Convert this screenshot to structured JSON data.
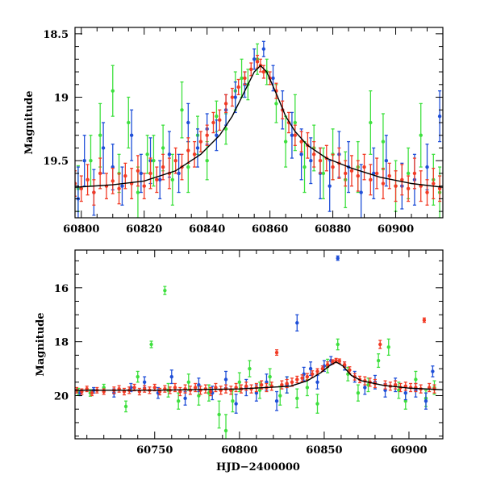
{
  "colors": {
    "green": "#3ee03e",
    "blue": "#1f4fd8",
    "red": "#f23a24",
    "model": "#000000",
    "frame": "#000000",
    "background": "#ffffff"
  },
  "chart_data": [
    {
      "type": "scatter",
      "panel": "top",
      "title": "",
      "xlabel": "",
      "ylabel": "Magnitude",
      "xlim": [
        60798,
        60915
      ],
      "ylim": [
        19.95,
        18.45
      ],
      "y_inverted": true,
      "grid": false,
      "error_bars": true,
      "xticks": [
        60800,
        60820,
        60840,
        60860,
        60880,
        60900
      ],
      "yticks": [
        18.5,
        19,
        19.5
      ],
      "ytick_labels": [
        "18.5",
        "19",
        "19.5"
      ],
      "model_curve": {
        "x": [
          60798,
          60810,
          60820,
          60830,
          60838,
          60844,
          60848,
          60852,
          60855,
          60857,
          60859,
          60862,
          60865,
          60868,
          60872,
          60878,
          60886,
          60895,
          60905,
          60915
        ],
        "y": [
          19.71,
          19.69,
          19.66,
          19.58,
          19.45,
          19.3,
          19.15,
          18.95,
          18.8,
          18.75,
          18.8,
          18.97,
          19.15,
          19.27,
          19.38,
          19.48,
          19.56,
          19.63,
          19.68,
          19.71
        ]
      },
      "series": [
        {
          "color": "green",
          "x": [
            60799,
            60803,
            60806,
            60810,
            60812,
            60815,
            60818,
            60821,
            60823,
            60826,
            60829,
            60832,
            60834,
            60837,
            60840,
            60843,
            60846,
            60849,
            60851,
            60853,
            60856,
            60859,
            60862,
            60865,
            60868,
            60871,
            60874,
            60877,
            60880,
            60884,
            60888,
            60892,
            60896,
            60900,
            60904,
            60908,
            60912,
            60914
          ],
          "y": [
            19.72,
            19.5,
            19.3,
            18.95,
            19.6,
            19.2,
            19.75,
            19.45,
            19.5,
            19.4,
            19.65,
            19.1,
            19.55,
            19.3,
            19.5,
            19.15,
            19.25,
            18.95,
            18.85,
            18.9,
            18.7,
            18.8,
            19.05,
            19.35,
            19.2,
            19.55,
            19.4,
            19.6,
            19.45,
            19.65,
            19.55,
            19.2,
            19.35,
            19.7,
            19.6,
            19.3,
            19.65,
            19.75
          ],
          "err": [
            0.18,
            0.2,
            0.25,
            0.2,
            0.15,
            0.2,
            0.2,
            0.15,
            0.2,
            0.18,
            0.2,
            0.22,
            0.2,
            0.15,
            0.15,
            0.12,
            0.12,
            0.15,
            0.15,
            0.12,
            0.12,
            0.1,
            0.15,
            0.2,
            0.22,
            0.2,
            0.18,
            0.2,
            0.2,
            0.22,
            0.2,
            0.25,
            0.22,
            0.2,
            0.2,
            0.25,
            0.2,
            0.2
          ]
        },
        {
          "color": "blue",
          "x": [
            60799,
            60801,
            60804,
            60807,
            60810,
            60813,
            60816,
            60819,
            60822,
            60825,
            60828,
            60831,
            60834,
            60837,
            60840,
            60843,
            60846,
            60849,
            60852,
            60855,
            60858,
            60861,
            60864,
            60867,
            60870,
            60873,
            60876,
            60879,
            60882,
            60885,
            60889,
            60893,
            60897,
            60902,
            60906,
            60910,
            60914
          ],
          "y": [
            19.8,
            19.5,
            19.75,
            19.4,
            19.55,
            19.7,
            19.3,
            19.6,
            19.5,
            19.65,
            19.45,
            19.6,
            19.2,
            19.4,
            19.25,
            19.3,
            19.1,
            19.0,
            18.9,
            18.7,
            18.62,
            18.85,
            19.1,
            19.3,
            19.45,
            19.5,
            19.6,
            19.7,
            19.45,
            19.55,
            19.75,
            19.6,
            19.5,
            19.7,
            19.65,
            19.55,
            19.15
          ],
          "err": [
            0.25,
            0.2,
            0.18,
            0.2,
            0.18,
            0.15,
            0.2,
            0.15,
            0.18,
            0.15,
            0.18,
            0.15,
            0.15,
            0.15,
            0.12,
            0.12,
            0.12,
            0.12,
            0.1,
            0.08,
            0.06,
            0.1,
            0.15,
            0.18,
            0.2,
            0.18,
            0.2,
            0.2,
            0.18,
            0.2,
            0.22,
            0.2,
            0.2,
            0.18,
            0.2,
            0.18,
            0.2
          ]
        },
        {
          "color": "red",
          "x": [
            60798,
            60800,
            60802,
            60804,
            60806,
            60808,
            60810,
            60812,
            60814,
            60816,
            60818,
            60820,
            60822,
            60824,
            60826,
            60828,
            60830,
            60832,
            60834,
            60836,
            60838,
            60840,
            60842,
            60844,
            60846,
            60848,
            60850,
            60852,
            60854,
            60856,
            60857,
            60858,
            60860,
            60862,
            60864,
            60866,
            60868,
            60870,
            60872,
            60874,
            60876,
            60878,
            60880,
            60882,
            60884,
            60886,
            60888,
            60890,
            60892,
            60894,
            60896,
            60898,
            60900,
            60902,
            60904,
            60906,
            60908,
            60910,
            60912,
            60914
          ],
          "y": [
            19.68,
            19.72,
            19.65,
            19.75,
            19.6,
            19.7,
            19.66,
            19.72,
            19.62,
            19.68,
            19.58,
            19.7,
            19.6,
            19.65,
            19.55,
            19.6,
            19.5,
            19.55,
            19.42,
            19.45,
            19.35,
            19.3,
            19.2,
            19.18,
            19.05,
            19.0,
            18.92,
            18.85,
            18.78,
            18.72,
            18.75,
            18.8,
            18.85,
            18.95,
            19.1,
            19.2,
            19.3,
            19.35,
            19.38,
            19.45,
            19.5,
            19.48,
            19.55,
            19.52,
            19.6,
            19.58,
            19.62,
            19.55,
            19.65,
            19.6,
            19.68,
            19.62,
            19.7,
            19.65,
            19.72,
            19.6,
            19.7,
            19.75,
            19.68,
            19.72
          ],
          "err": [
            0.1,
            0.1,
            0.12,
            0.1,
            0.12,
            0.1,
            0.1,
            0.12,
            0.1,
            0.12,
            0.12,
            0.1,
            0.12,
            0.1,
            0.1,
            0.12,
            0.1,
            0.1,
            0.1,
            0.1,
            0.08,
            0.08,
            0.08,
            0.08,
            0.07,
            0.07,
            0.06,
            0.05,
            0.05,
            0.05,
            0.05,
            0.05,
            0.05,
            0.06,
            0.07,
            0.08,
            0.08,
            0.08,
            0.1,
            0.1,
            0.1,
            0.1,
            0.1,
            0.12,
            0.1,
            0.12,
            0.12,
            0.1,
            0.12,
            0.12,
            0.12,
            0.1,
            0.12,
            0.12,
            0.1,
            0.12,
            0.12,
            0.1,
            0.12,
            0.1
          ]
        }
      ]
    },
    {
      "type": "scatter",
      "panel": "bottom",
      "title": "",
      "xlabel": "HJD−2400000",
      "ylabel": "Magnitude",
      "xlim": [
        60703,
        60920
      ],
      "ylim": [
        21.6,
        14.6
      ],
      "y_inverted": true,
      "grid": false,
      "error_bars": true,
      "xticks": [
        60750,
        60800,
        60850,
        60900
      ],
      "yticks": [
        16,
        18,
        20
      ],
      "ytick_labels": [
        "16",
        "18",
        "20"
      ],
      "model_curve": {
        "x": [
          60703,
          60750,
          60800,
          60830,
          60840,
          60848,
          60853,
          60857,
          60861,
          60866,
          60872,
          60885,
          60900,
          60920
        ],
        "y": [
          19.8,
          19.8,
          19.75,
          19.65,
          19.45,
          19.15,
          18.9,
          18.75,
          18.9,
          19.25,
          19.45,
          19.62,
          19.72,
          19.78
        ]
      },
      "series": [
        {
          "color": "green",
          "x": [
            60705,
            60712,
            60720,
            60733,
            60740,
            60748,
            60756,
            60758,
            60764,
            60770,
            60776,
            60782,
            60788,
            60792,
            60796,
            60800,
            60806,
            60812,
            60818,
            60824,
            60828,
            60834,
            60840,
            60846,
            60852,
            60858,
            60864,
            60870,
            60876,
            60882,
            60888,
            60894,
            60898,
            60904,
            60910,
            60915
          ],
          "y": [
            19.85,
            19.9,
            19.7,
            20.4,
            19.3,
            18.1,
            16.1,
            19.8,
            20.2,
            19.5,
            20.0,
            19.9,
            20.7,
            21.3,
            20.2,
            19.5,
            19.0,
            19.8,
            19.3,
            20.0,
            19.6,
            20.1,
            19.7,
            20.3,
            18.9,
            18.1,
            19.2,
            19.9,
            19.6,
            18.7,
            18.2,
            19.8,
            20.2,
            19.4,
            20.1,
            19.7
          ],
          "err": [
            0.12,
            0.12,
            0.12,
            0.2,
            0.2,
            0.12,
            0.15,
            0.25,
            0.3,
            0.3,
            0.35,
            0.3,
            0.5,
            0.6,
            0.4,
            0.35,
            0.3,
            0.3,
            0.3,
            0.35,
            0.3,
            0.35,
            0.3,
            0.35,
            0.25,
            0.2,
            0.25,
            0.3,
            0.25,
            0.25,
            0.3,
            0.3,
            0.3,
            0.3,
            0.3,
            0.25
          ]
        },
        {
          "color": "blue",
          "x": [
            60706,
            60714,
            60726,
            60736,
            60744,
            60752,
            60760,
            60768,
            60776,
            60784,
            60792,
            60798,
            60804,
            60810,
            60816,
            60822,
            60828,
            60834,
            60838,
            60842,
            60846,
            60850,
            60854,
            60858,
            60862,
            60868,
            60874,
            60880,
            60886,
            60892,
            60898,
            60904,
            60910,
            60914
          ],
          "y": [
            19.9,
            19.8,
            19.9,
            19.7,
            19.5,
            19.9,
            19.3,
            20.1,
            19.6,
            19.9,
            19.4,
            20.3,
            19.7,
            19.9,
            19.5,
            20.2,
            19.6,
            17.3,
            19.2,
            19.0,
            19.5,
            18.9,
            18.7,
            14.9,
            18.9,
            19.3,
            19.7,
            19.5,
            19.8,
            19.6,
            19.9,
            19.8,
            20.2,
            19.1
          ],
          "err": [
            0.1,
            0.1,
            0.15,
            0.15,
            0.2,
            0.2,
            0.25,
            0.25,
            0.25,
            0.25,
            0.3,
            0.35,
            0.3,
            0.3,
            0.3,
            0.35,
            0.3,
            0.3,
            0.25,
            0.25,
            0.25,
            0.2,
            0.15,
            0.08,
            0.15,
            0.2,
            0.25,
            0.25,
            0.25,
            0.25,
            0.25,
            0.25,
            0.3,
            0.2
          ]
        },
        {
          "color": "red",
          "x": [
            60704,
            60707,
            60710,
            60713,
            60716,
            60720,
            60726,
            60729,
            60732,
            60735,
            60738,
            60741,
            60744,
            60747,
            60750,
            60753,
            60756,
            60759,
            60762,
            60765,
            60768,
            60771,
            60774,
            60777,
            60780,
            60783,
            60786,
            60789,
            60792,
            60795,
            60798,
            60801,
            60804,
            60807,
            60810,
            60813,
            60816,
            60819,
            60822,
            60825,
            60828,
            60831,
            60834,
            60837,
            60840,
            60843,
            60846,
            60849,
            60852,
            60855,
            60857,
            60859,
            60862,
            60865,
            60868,
            60871,
            60874,
            60877,
            60880,
            60883,
            60886,
            60889,
            60892,
            60895,
            60898,
            60901,
            60904,
            60907,
            60909,
            60912,
            60915
          ],
          "y": [
            19.8,
            19.85,
            19.75,
            19.9,
            19.8,
            19.85,
            19.8,
            19.75,
            19.85,
            19.8,
            19.7,
            19.85,
            19.75,
            19.8,
            19.7,
            19.85,
            19.75,
            19.8,
            19.7,
            19.85,
            19.75,
            19.8,
            19.7,
            19.8,
            19.75,
            19.85,
            19.7,
            19.8,
            19.75,
            19.8,
            19.7,
            19.75,
            19.65,
            19.75,
            19.7,
            19.6,
            19.7,
            19.65,
            18.4,
            19.6,
            19.55,
            19.5,
            19.4,
            19.35,
            19.3,
            19.2,
            19.1,
            19.0,
            18.85,
            18.75,
            18.7,
            18.72,
            18.85,
            19.05,
            19.3,
            19.4,
            19.45,
            19.5,
            19.55,
            18.1,
            19.6,
            19.65,
            19.6,
            19.7,
            19.65,
            19.7,
            19.7,
            19.75,
            17.2,
            19.7,
            19.75
          ],
          "err": [
            0.1,
            0.1,
            0.1,
            0.1,
            0.1,
            0.1,
            0.12,
            0.12,
            0.12,
            0.12,
            0.12,
            0.12,
            0.12,
            0.12,
            0.12,
            0.12,
            0.12,
            0.12,
            0.15,
            0.15,
            0.15,
            0.15,
            0.15,
            0.15,
            0.15,
            0.15,
            0.15,
            0.15,
            0.15,
            0.15,
            0.15,
            0.15,
            0.15,
            0.15,
            0.15,
            0.15,
            0.15,
            0.15,
            0.1,
            0.15,
            0.15,
            0.15,
            0.12,
            0.12,
            0.12,
            0.12,
            0.1,
            0.1,
            0.1,
            0.08,
            0.08,
            0.08,
            0.1,
            0.12,
            0.12,
            0.12,
            0.15,
            0.15,
            0.15,
            0.15,
            0.15,
            0.15,
            0.15,
            0.15,
            0.15,
            0.15,
            0.15,
            0.15,
            0.08,
            0.15,
            0.15
          ]
        }
      ]
    }
  ]
}
